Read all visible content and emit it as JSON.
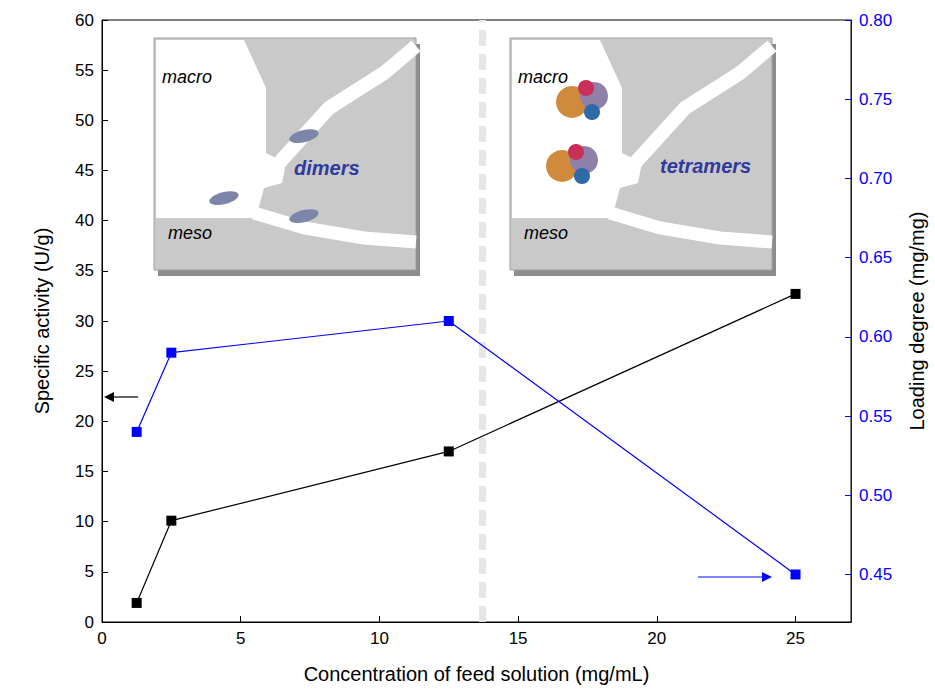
{
  "chart_data": {
    "type": "line",
    "x_label": "Concentration of feed solution (mg/mL)",
    "y_label": "Specific activity (U/g)",
    "y2_label": "Loading degree (mg/mg)",
    "xlim": [
      0,
      27
    ],
    "xticks": [
      0,
      5,
      10,
      15,
      20,
      25
    ],
    "ylim": [
      0,
      60
    ],
    "yticks": [
      0,
      5,
      10,
      15,
      20,
      25,
      30,
      35,
      40,
      45,
      50,
      55,
      60
    ],
    "y2lim": [
      0.42,
      0.8
    ],
    "y2ticks": [
      0.45,
      {
        "value": 0.5,
        "label": "0.50"
      },
      0.55,
      {
        "value": 0.6,
        "label": "0.60"
      },
      0.65,
      {
        "value": 0.7,
        "label": "0.70"
      },
      0.75,
      {
        "value": 0.8,
        "label": "0.80"
      }
    ],
    "grid": false,
    "marker": "square",
    "line_style": "solid",
    "divider": 13.7,
    "series": [
      {
        "name": "Specific activity",
        "color": "#000000",
        "axis": "y",
        "x": [
          1.25,
          2.5,
          12.5,
          25
        ],
        "values": [
          1.9,
          10.1,
          17.0,
          32.7
        ]
      },
      {
        "name": "Loading degree",
        "color": "#0000ff",
        "axis": "y2",
        "x": [
          1.25,
          2.5,
          12.5,
          25
        ],
        "values": [
          0.54,
          0.59,
          0.61,
          0.45
        ]
      }
    ],
    "insets": [
      {
        "pore_labels": [
          "macro",
          "meso"
        ],
        "label": "dimers"
      },
      {
        "pore_labels": [
          "macro",
          "meso"
        ],
        "label": "tetramers"
      }
    ]
  }
}
